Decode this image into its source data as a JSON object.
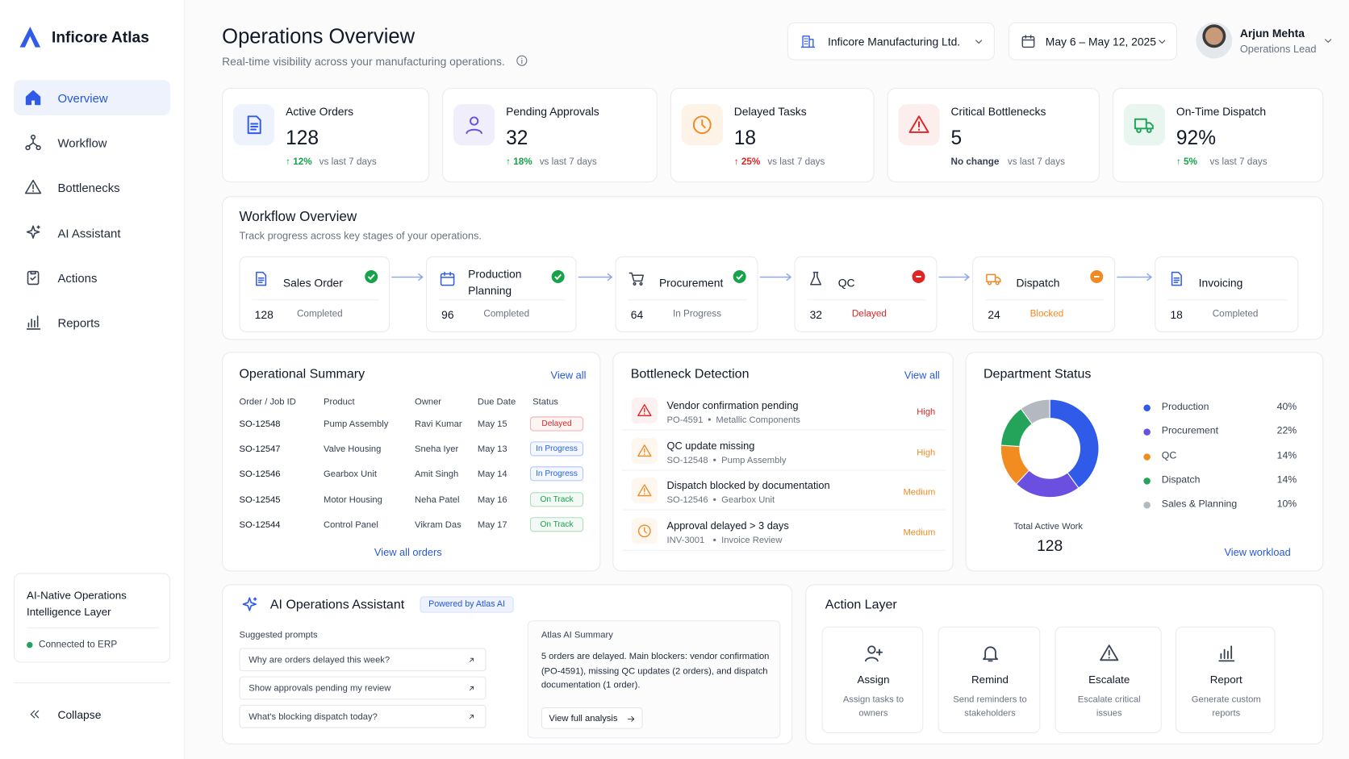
{
  "sidebar": {
    "brand": "Inficore Atlas",
    "nav": [
      "Overview",
      "Workflow",
      "Bottlenecks",
      "AI Assistant",
      "Actions",
      "Reports"
    ],
    "card": {
      "title": "AI-Native Operations Intelligence Layer",
      "status": "Connected to ERP"
    },
    "collapse": "Collapse"
  },
  "header": {
    "title": "Operations Overview",
    "subtitle": "Real-time visibility across your manufacturing operations.",
    "company": "Inficore Manufacturing Ltd.",
    "date_range": "May 6 – May 12, 2025",
    "user": {
      "name": "Arjun Mehta",
      "role": "Operations Lead"
    }
  },
  "kpis": [
    {
      "label": "Active Orders",
      "value": "128",
      "change": "↑ 12%",
      "note": "vs last 7 days",
      "color": "#16a34a"
    },
    {
      "label": "Pending Approvals",
      "value": "32",
      "change": "↑ 18%",
      "note": "vs last 7 days",
      "color": "#16a34a"
    },
    {
      "label": "Delayed Tasks",
      "value": "18",
      "change": "↑ 25%",
      "note": "vs last 7 days",
      "color": "#dc2626"
    },
    {
      "label": "Critical Bottlenecks",
      "value": "5",
      "change": "No change",
      "note": "vs last 7 days",
      "color": "#374151"
    },
    {
      "label": "On-Time Dispatch",
      "value": "92%",
      "change": "↑ 5%",
      "note": "vs last 7 days",
      "color": "#16a34a"
    }
  ],
  "workflow": {
    "title": "Workflow Overview",
    "subtitle": "Track progress across key stages of your operations.",
    "stages": [
      {
        "name": "Sales Order",
        "count": "128",
        "status": "Completed",
        "color": "#6b7280",
        "badge": "#16a34a"
      },
      {
        "name": "Production Planning",
        "count": "96",
        "status": "Completed",
        "color": "#6b7280",
        "badge": "#16a34a"
      },
      {
        "name": "Procurement",
        "count": "64",
        "status": "In Progress",
        "color": "#6b7280",
        "badge": "#16a34a"
      },
      {
        "name": "QC",
        "count": "32",
        "status": "Delayed",
        "color": "#dc2626",
        "badge": "#dc2626"
      },
      {
        "name": "Dispatch",
        "count": "24",
        "status": "Blocked",
        "color": "#f08a24",
        "badge": "#f08a24"
      },
      {
        "name": "Invoicing",
        "count": "18",
        "status": "Completed",
        "color": "#6b7280",
        "badge": null
      }
    ]
  },
  "summary": {
    "title": "Operational Summary",
    "view_all": "View all",
    "columns": [
      "Order / Job ID",
      "Product",
      "Owner",
      "Due Date",
      "Status"
    ],
    "rows": [
      [
        "SO-12548",
        "Pump Assembly",
        "Ravi Kumar",
        "May 15",
        "Delayed"
      ],
      [
        "SO-12547",
        "Valve Housing",
        "Sneha Iyer",
        "May 13",
        "In Progress"
      ],
      [
        "SO-12546",
        "Gearbox Unit",
        "Amit Singh",
        "May 14",
        "In Progress"
      ],
      [
        "SO-12545",
        "Motor Housing",
        "Neha Patel",
        "May 16",
        "On Track"
      ],
      [
        "SO-12544",
        "Control Panel",
        "Vikram Das",
        "May 17",
        "On Track"
      ]
    ],
    "status_colors": [
      "#dc2626",
      "#2563eb",
      "#2563eb",
      "#16a34a",
      "#16a34a"
    ],
    "footer_link": "View all orders"
  },
  "bottlenecks": {
    "title": "Bottleneck Detection",
    "view_all": "View all",
    "items": [
      {
        "title": "Vendor confirmation pending",
        "id": "PO-4591",
        "subject": "Metallic Components",
        "severity": "High",
        "color": "#dc2626"
      },
      {
        "title": "QC update missing",
        "id": "SO-12548",
        "subject": "Pump Assembly",
        "severity": "High",
        "color": "#f08a24"
      },
      {
        "title": "Dispatch blocked by documentation",
        "id": "SO-12546",
        "subject": "Gearbox Unit",
        "severity": "Medium",
        "color": "#f08a24"
      },
      {
        "title": "Approval delayed > 3 days",
        "id": "INV-3001",
        "subject": "Invoice Review",
        "severity": "Medium",
        "color": "#f08a24"
      }
    ]
  },
  "department": {
    "title": "Department Status",
    "segments": [
      {
        "name": "Production",
        "value": 40,
        "label": "40%",
        "color": "#2f5be8"
      },
      {
        "name": "Procurement",
        "value": 22,
        "label": "22%",
        "color": "#6a4fe0"
      },
      {
        "name": "QC",
        "value": 14,
        "label": "14%",
        "color": "#f28b20"
      },
      {
        "name": "Dispatch",
        "value": 14,
        "label": "14%",
        "color": "#23a45a"
      },
      {
        "name": "Sales & Planning",
        "value": 10,
        "label": "10%",
        "color": "#b4b8c0"
      }
    ],
    "total_label": "Total Active Work",
    "total": "128",
    "link": "View workload"
  },
  "assistant": {
    "title": "AI Operations Assistant",
    "badge": "Powered by Atlas AI",
    "prompts_label": "Suggested prompts",
    "prompts": [
      "Why are orders delayed this week?",
      "Show approvals pending my review",
      "What's blocking dispatch today?"
    ],
    "summary_label": "Atlas AI Summary",
    "summary": "5 orders are delayed. Main blockers: vendor confirmation (PO-4591), missing QC updates (2 orders), and dispatch documentation (1 order).",
    "cta": "View full analysis"
  },
  "actions": {
    "title": "Action Layer",
    "items": [
      {
        "title": "Assign",
        "desc": "Assign tasks to owners"
      },
      {
        "title": "Remind",
        "desc": "Send reminders to stakeholders"
      },
      {
        "title": "Escalate",
        "desc": "Escalate critical issues"
      },
      {
        "title": "Report",
        "desc": "Generate custom reports"
      }
    ]
  }
}
